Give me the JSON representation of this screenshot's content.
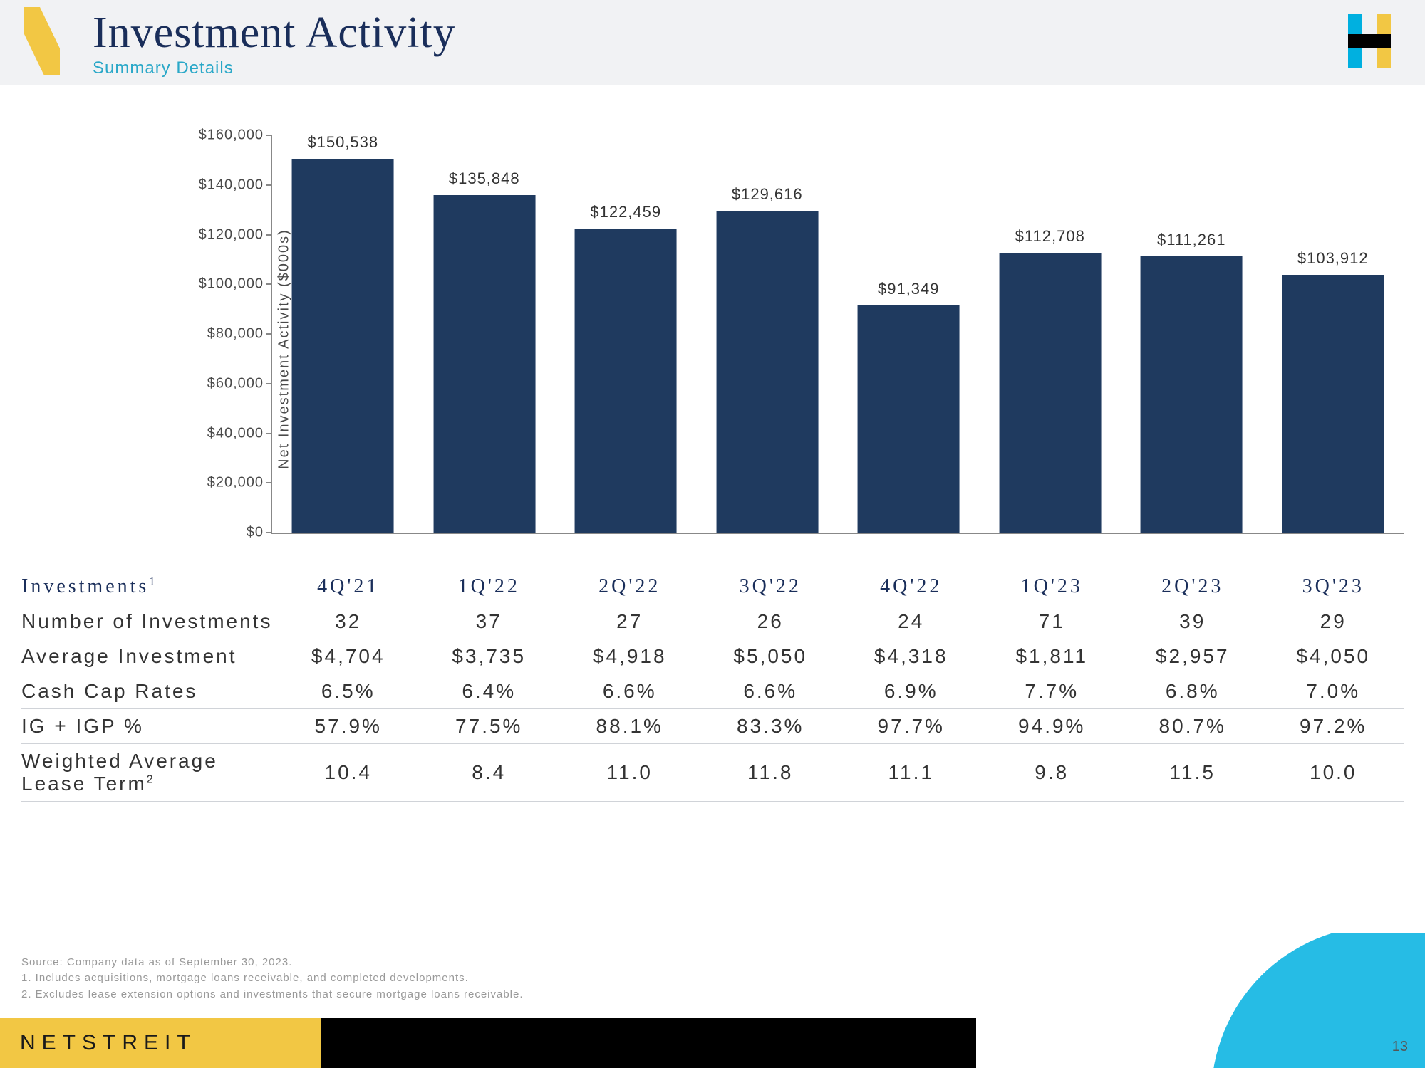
{
  "header": {
    "title": "Investment Activity",
    "subtitle": "Summary Details",
    "subtitle_color": "#2aa8c8",
    "accent_color": "#f2c744",
    "title_color": "#1a2e5a"
  },
  "chart": {
    "type": "bar",
    "ylabel": "Net Investment Activity ($000s)",
    "ylim": [
      0,
      160000
    ],
    "ytick_step": 20000,
    "ytick_labels": [
      "$0",
      "$20,000",
      "$40,000",
      "$60,000",
      "$80,000",
      "$100,000",
      "$120,000",
      "$140,000",
      "$160,000"
    ],
    "categories": [
      "4Q'21",
      "1Q'22",
      "2Q'22",
      "3Q'22",
      "4Q'22",
      "1Q'23",
      "2Q'23",
      "3Q'23"
    ],
    "values": [
      150538,
      135848,
      122459,
      129616,
      91349,
      112708,
      111261,
      103912
    ],
    "value_labels": [
      "$150,538",
      "$135,848",
      "$122,459",
      "$129,616",
      "$91,349",
      "$112,708",
      "$111,261",
      "$103,912"
    ],
    "bar_color": "#1f3a5f",
    "axis_color": "#888888",
    "label_color": "#333333",
    "background_color": "#ffffff"
  },
  "table": {
    "header_label": "Investments",
    "header_sup": "1",
    "columns": [
      "4Q'21",
      "1Q'22",
      "2Q'22",
      "3Q'22",
      "4Q'22",
      "1Q'23",
      "2Q'23",
      "3Q'23"
    ],
    "rows": [
      {
        "label": "Number of Investments",
        "sup": "",
        "cells": [
          "32",
          "37",
          "27",
          "26",
          "24",
          "71",
          "39",
          "29"
        ]
      },
      {
        "label": "Average Investment",
        "sup": "",
        "cells": [
          "$4,704",
          "$3,735",
          "$4,918",
          "$5,050",
          "$4,318",
          "$1,811",
          "$2,957",
          "$4,050"
        ]
      },
      {
        "label": "Cash Cap Rates",
        "sup": "",
        "cells": [
          "6.5%",
          "6.4%",
          "6.6%",
          "6.6%",
          "6.9%",
          "7.7%",
          "6.8%",
          "7.0%"
        ]
      },
      {
        "label": "IG + IGP %",
        "sup": "",
        "cells": [
          "57.9%",
          "77.5%",
          "88.1%",
          "83.3%",
          "97.7%",
          "94.9%",
          "80.7%",
          "97.2%"
        ]
      },
      {
        "label": "Weighted Average Lease Term",
        "sup": "2",
        "cells": [
          "10.4",
          "8.4",
          "11.0",
          "11.8",
          "11.1",
          "9.8",
          "11.5",
          "10.0"
        ]
      }
    ]
  },
  "footnotes": [
    "Source: Company data as of September 30, 2023.",
    "1.  Includes acquisitions, mortgage loans receivable, and completed developments.",
    "2.  Excludes lease extension options and investments that secure mortgage loans receivable."
  ],
  "footer": {
    "brand": "NETSTREIT",
    "page": "13",
    "yellow": "#f2c744",
    "black": "#000000",
    "blue": "#00b0e0"
  }
}
